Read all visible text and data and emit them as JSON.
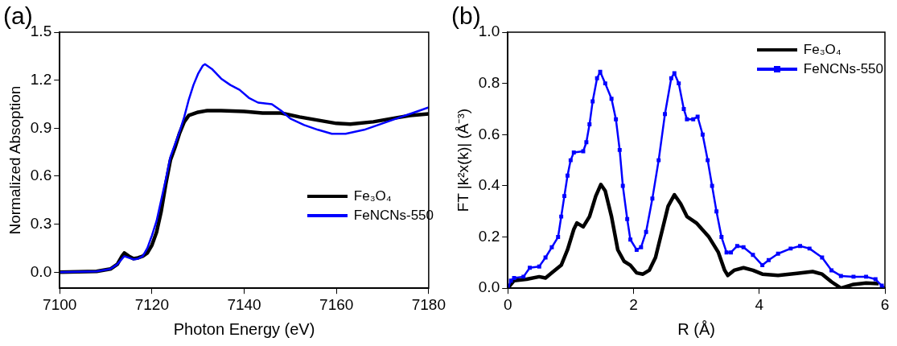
{
  "chart_data": [
    {
      "type": "line",
      "title": "(a)",
      "xlabel": "Photon Energy (eV)",
      "ylabel": "Normalized Absoption",
      "legend": "right",
      "grid": false,
      "xlim": [
        7100,
        7180
      ],
      "xticks": [
        7100,
        7120,
        7140,
        7160,
        7180
      ],
      "ylim": [
        -0.1,
        1.5
      ],
      "yticks": [
        {
          "value": 0,
          "label": "0.0"
        },
        {
          "value": 0.3,
          "label": "0.3"
        },
        {
          "value": 0.6,
          "label": "0.6"
        },
        {
          "value": 0.9,
          "label": "0.9"
        },
        {
          "value": 1.2,
          "label": "1.2"
        },
        {
          "value": 1.5,
          "label": "1.5"
        }
      ],
      "series": [
        {
          "name": "Fe₃O₄",
          "color": "#000000",
          "marker": "none",
          "x": [
            7100,
            7108,
            7111,
            7112.5,
            7113.5,
            7114,
            7115,
            7116,
            7117,
            7118,
            7119,
            7120,
            7121,
            7122,
            7123,
            7124,
            7125,
            7126,
            7127,
            7128,
            7130,
            7132,
            7135,
            7140,
            7144,
            7148,
            7152,
            7156,
            7160,
            7163,
            7168,
            7172,
            7176,
            7180
          ],
          "values": [
            0,
            0.005,
            0.02,
            0.05,
            0.1,
            0.12,
            0.1,
            0.085,
            0.09,
            0.1,
            0.12,
            0.17,
            0.25,
            0.38,
            0.55,
            0.7,
            0.78,
            0.87,
            0.94,
            0.98,
            1.0,
            1.01,
            1.01,
            1.005,
            0.995,
            0.995,
            0.97,
            0.95,
            0.93,
            0.925,
            0.94,
            0.96,
            0.98,
            0.99
          ]
        },
        {
          "name": "FeNCNs-550",
          "color": "#0000ff",
          "marker": "none",
          "x": [
            7100,
            7108,
            7111,
            7112.5,
            7114,
            7115,
            7116,
            7117,
            7118,
            7119,
            7120,
            7121,
            7122,
            7123,
            7124,
            7125,
            7126,
            7127,
            7128,
            7129,
            7130,
            7131,
            7131.5,
            7133,
            7135,
            7137,
            7139,
            7141,
            7143,
            7146,
            7148,
            7150,
            7153,
            7156,
            7159,
            7162,
            7166,
            7170,
            7174,
            7178,
            7180
          ],
          "values": [
            0,
            0.005,
            0.02,
            0.05,
            0.1,
            0.09,
            0.08,
            0.085,
            0.1,
            0.15,
            0.23,
            0.32,
            0.45,
            0.58,
            0.72,
            0.8,
            0.88,
            0.97,
            1.08,
            1.17,
            1.24,
            1.29,
            1.3,
            1.27,
            1.21,
            1.17,
            1.14,
            1.09,
            1.06,
            1.05,
            1.01,
            0.96,
            0.92,
            0.89,
            0.865,
            0.865,
            0.89,
            0.93,
            0.97,
            1.01,
            1.03
          ]
        }
      ]
    },
    {
      "type": "line",
      "title": "(b)",
      "xlabel": "R (Å)",
      "ylabel": "FT |k²x(k)| (Å⁻³)",
      "legend": "top right",
      "grid": false,
      "xlim": [
        0,
        6
      ],
      "xticks": [
        0,
        2,
        4,
        6
      ],
      "ylim": [
        0,
        1
      ],
      "yticks": [
        {
          "value": 0,
          "label": "0.0"
        },
        {
          "value": 0.2,
          "label": "0.2"
        },
        {
          "value": 0.4,
          "label": "0.4"
        },
        {
          "value": 0.6,
          "label": "0.6"
        },
        {
          "value": 0.8,
          "label": "0.8"
        },
        {
          "value": 1,
          "label": "1.0"
        }
      ],
      "series": [
        {
          "name": "Fe₃O₄",
          "color": "#000000",
          "marker": "none",
          "x": [
            0,
            0.1,
            0.3,
            0.5,
            0.6,
            0.7,
            0.85,
            0.95,
            1.05,
            1.1,
            1.2,
            1.3,
            1.4,
            1.48,
            1.55,
            1.65,
            1.75,
            1.85,
            1.95,
            2.05,
            2.15,
            2.25,
            2.35,
            2.45,
            2.55,
            2.65,
            2.75,
            2.85,
            3.0,
            3.2,
            3.35,
            3.45,
            3.5,
            3.6,
            3.75,
            3.9,
            4.05,
            4.3,
            4.6,
            4.85,
            5.0,
            5.15,
            5.3,
            5.5,
            5.7,
            5.9
          ],
          "values": [
            0,
            0.03,
            0.035,
            0.045,
            0.04,
            0.06,
            0.09,
            0.15,
            0.23,
            0.255,
            0.24,
            0.28,
            0.36,
            0.405,
            0.38,
            0.28,
            0.15,
            0.105,
            0.09,
            0.06,
            0.055,
            0.07,
            0.12,
            0.22,
            0.32,
            0.365,
            0.33,
            0.28,
            0.255,
            0.2,
            0.14,
            0.07,
            0.05,
            0.07,
            0.08,
            0.07,
            0.055,
            0.05,
            0.058,
            0.065,
            0.055,
            0.025,
            0,
            0.015,
            0.02,
            0.018
          ]
        },
        {
          "name": "FeNCNs-550",
          "color": "#0000ff",
          "marker": "square",
          "x": [
            0,
            0.05,
            0.1,
            0.25,
            0.35,
            0.5,
            0.6,
            0.7,
            0.8,
            0.85,
            0.9,
            0.95,
            1.0,
            1.05,
            1.2,
            1.25,
            1.3,
            1.35,
            1.42,
            1.47,
            1.55,
            1.65,
            1.72,
            1.78,
            1.83,
            1.9,
            1.95,
            2.05,
            2.12,
            2.2,
            2.3,
            2.4,
            2.5,
            2.6,
            2.65,
            2.72,
            2.8,
            2.85,
            2.95,
            3.02,
            3.1,
            3.18,
            3.25,
            3.32,
            3.4,
            3.48,
            3.55,
            3.65,
            3.75,
            3.9,
            4.05,
            4.15,
            4.3,
            4.5,
            4.65,
            4.8,
            5.0,
            5.15,
            5.3,
            5.5,
            5.7,
            5.85,
            5.95,
            6.0
          ],
          "values": [
            0,
            0.03,
            0.04,
            0.045,
            0.08,
            0.085,
            0.12,
            0.16,
            0.2,
            0.28,
            0.36,
            0.44,
            0.5,
            0.53,
            0.535,
            0.57,
            0.64,
            0.73,
            0.82,
            0.845,
            0.8,
            0.74,
            0.66,
            0.54,
            0.4,
            0.27,
            0.19,
            0.15,
            0.16,
            0.22,
            0.35,
            0.5,
            0.68,
            0.82,
            0.84,
            0.8,
            0.7,
            0.66,
            0.66,
            0.67,
            0.6,
            0.5,
            0.4,
            0.3,
            0.2,
            0.14,
            0.14,
            0.165,
            0.16,
            0.13,
            0.09,
            0.11,
            0.135,
            0.155,
            0.165,
            0.155,
            0.12,
            0.07,
            0.048,
            0.045,
            0.045,
            0.035,
            0.01,
            0
          ]
        }
      ]
    }
  ]
}
